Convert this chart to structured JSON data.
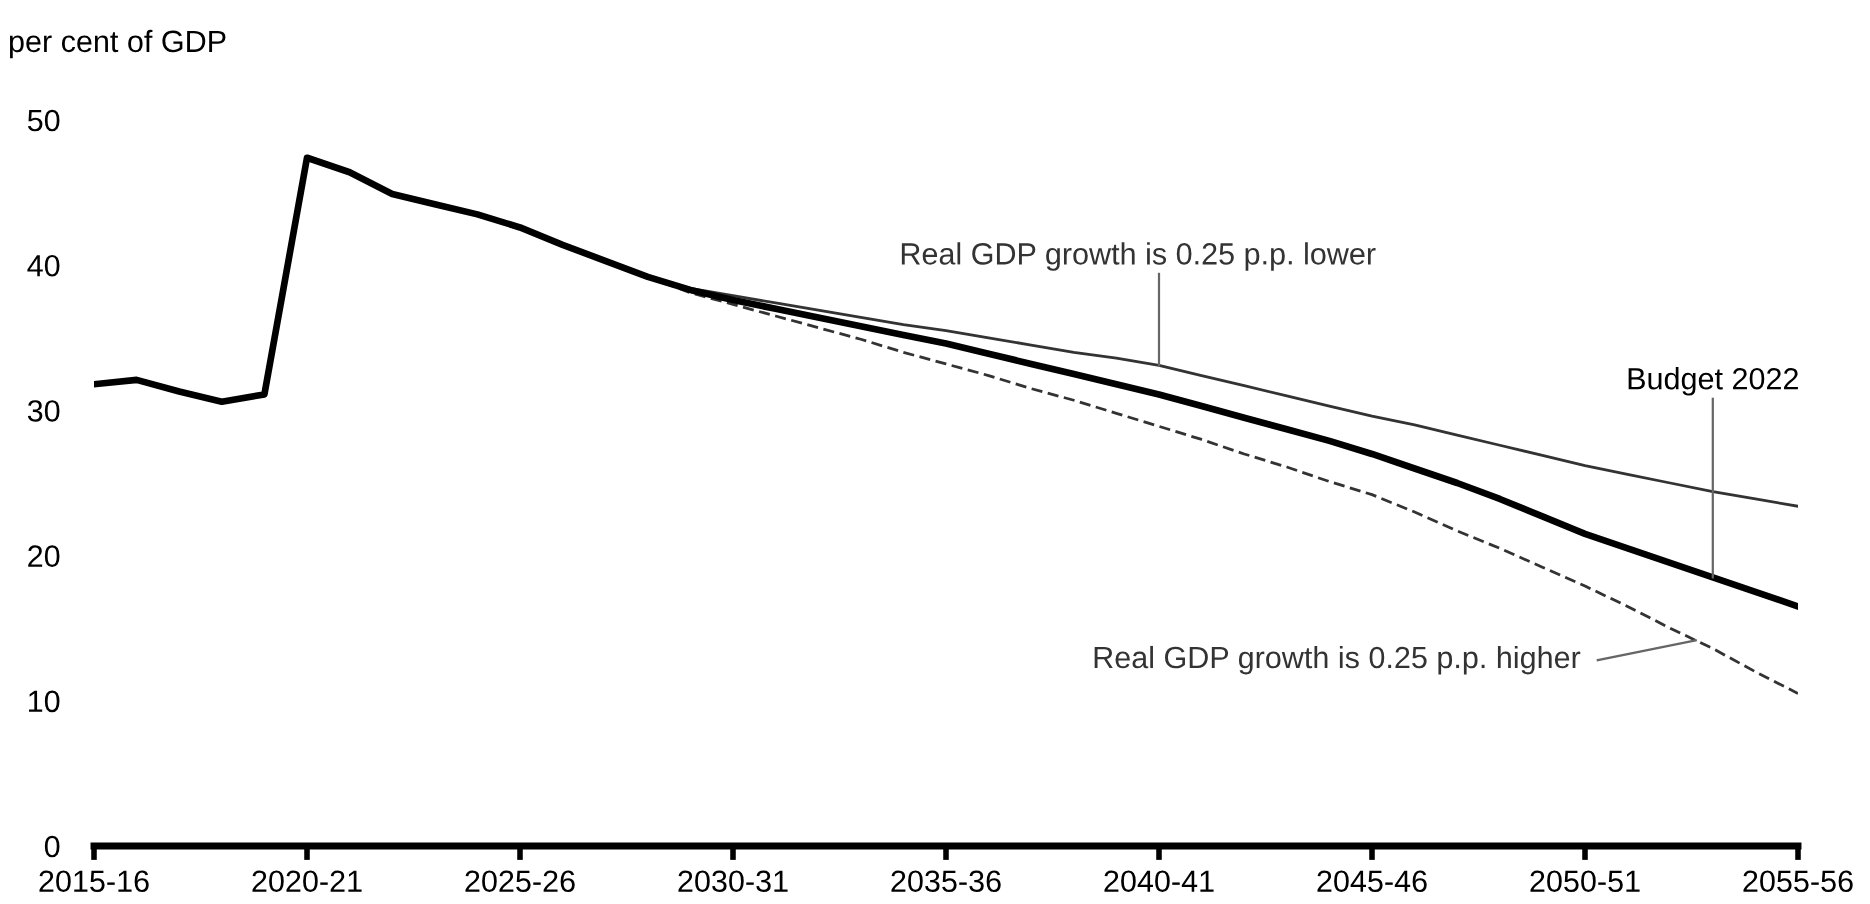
{
  "chart_data": {
    "type": "line",
    "ylabel": "per cent of GDP",
    "categories": [
      "2015-16",
      null,
      null,
      null,
      null,
      "2020-21",
      null,
      null,
      null,
      null,
      "2025-26",
      null,
      null,
      null,
      null,
      "2030-31",
      null,
      null,
      null,
      null,
      "2035-36",
      null,
      null,
      null,
      null,
      "2040-41",
      null,
      null,
      null,
      null,
      "2045-46",
      null,
      null,
      null,
      null,
      "2050-51",
      null,
      null,
      null,
      null,
      "2055-56"
    ],
    "ylim": [
      0,
      50
    ],
    "yticks": [
      0,
      10,
      20,
      30,
      40,
      50
    ],
    "grid": false,
    "legend": false,
    "marker": "none",
    "series": [
      {
        "name": "Real GDP growth is 0.25 p.p. lower",
        "color": "#333333",
        "line_style": "solid",
        "values": [
          null,
          null,
          null,
          null,
          null,
          null,
          null,
          null,
          null,
          null,
          null,
          null,
          null,
          39.2,
          38.4,
          37.9,
          37.4,
          36.9,
          36.4,
          35.9,
          35.5,
          35.0,
          34.5,
          34.0,
          33.6,
          33.1,
          32.4,
          31.7,
          31.0,
          30.3,
          29.6,
          29.0,
          28.3,
          27.6,
          26.9,
          26.2,
          25.6,
          25.0,
          24.4,
          23.9,
          23.4
        ]
      },
      {
        "name": "Real GDP growth is 0.25 p.p. higher",
        "color": "#333333",
        "line_style": "dashed",
        "values": [
          null,
          null,
          null,
          null,
          null,
          null,
          null,
          null,
          null,
          null,
          null,
          null,
          null,
          39.2,
          38.1,
          37.3,
          36.5,
          35.7,
          34.9,
          34.0,
          33.2,
          32.4,
          31.5,
          30.7,
          29.8,
          28.9,
          28.0,
          27.0,
          26.1,
          25.1,
          24.2,
          23.0,
          21.7,
          20.5,
          19.2,
          17.9,
          16.5,
          15.0,
          13.6,
          12.0,
          10.5
        ]
      },
      {
        "name": "Budget 2022",
        "color": "#000000",
        "line_style": "solid",
        "values": [
          31.8,
          32.1,
          31.3,
          30.6,
          31.1,
          47.4,
          46.4,
          44.9,
          44.2,
          43.5,
          42.6,
          41.4,
          40.3,
          39.2,
          38.3,
          37.6,
          37.0,
          36.4,
          35.8,
          35.2,
          34.6,
          33.9,
          33.2,
          32.5,
          31.8,
          31.1,
          30.3,
          29.5,
          28.7,
          27.9,
          27.0,
          26.0,
          25.0,
          23.9,
          22.7,
          21.5,
          20.5,
          19.5,
          18.5,
          17.5,
          16.5
        ]
      }
    ]
  }
}
